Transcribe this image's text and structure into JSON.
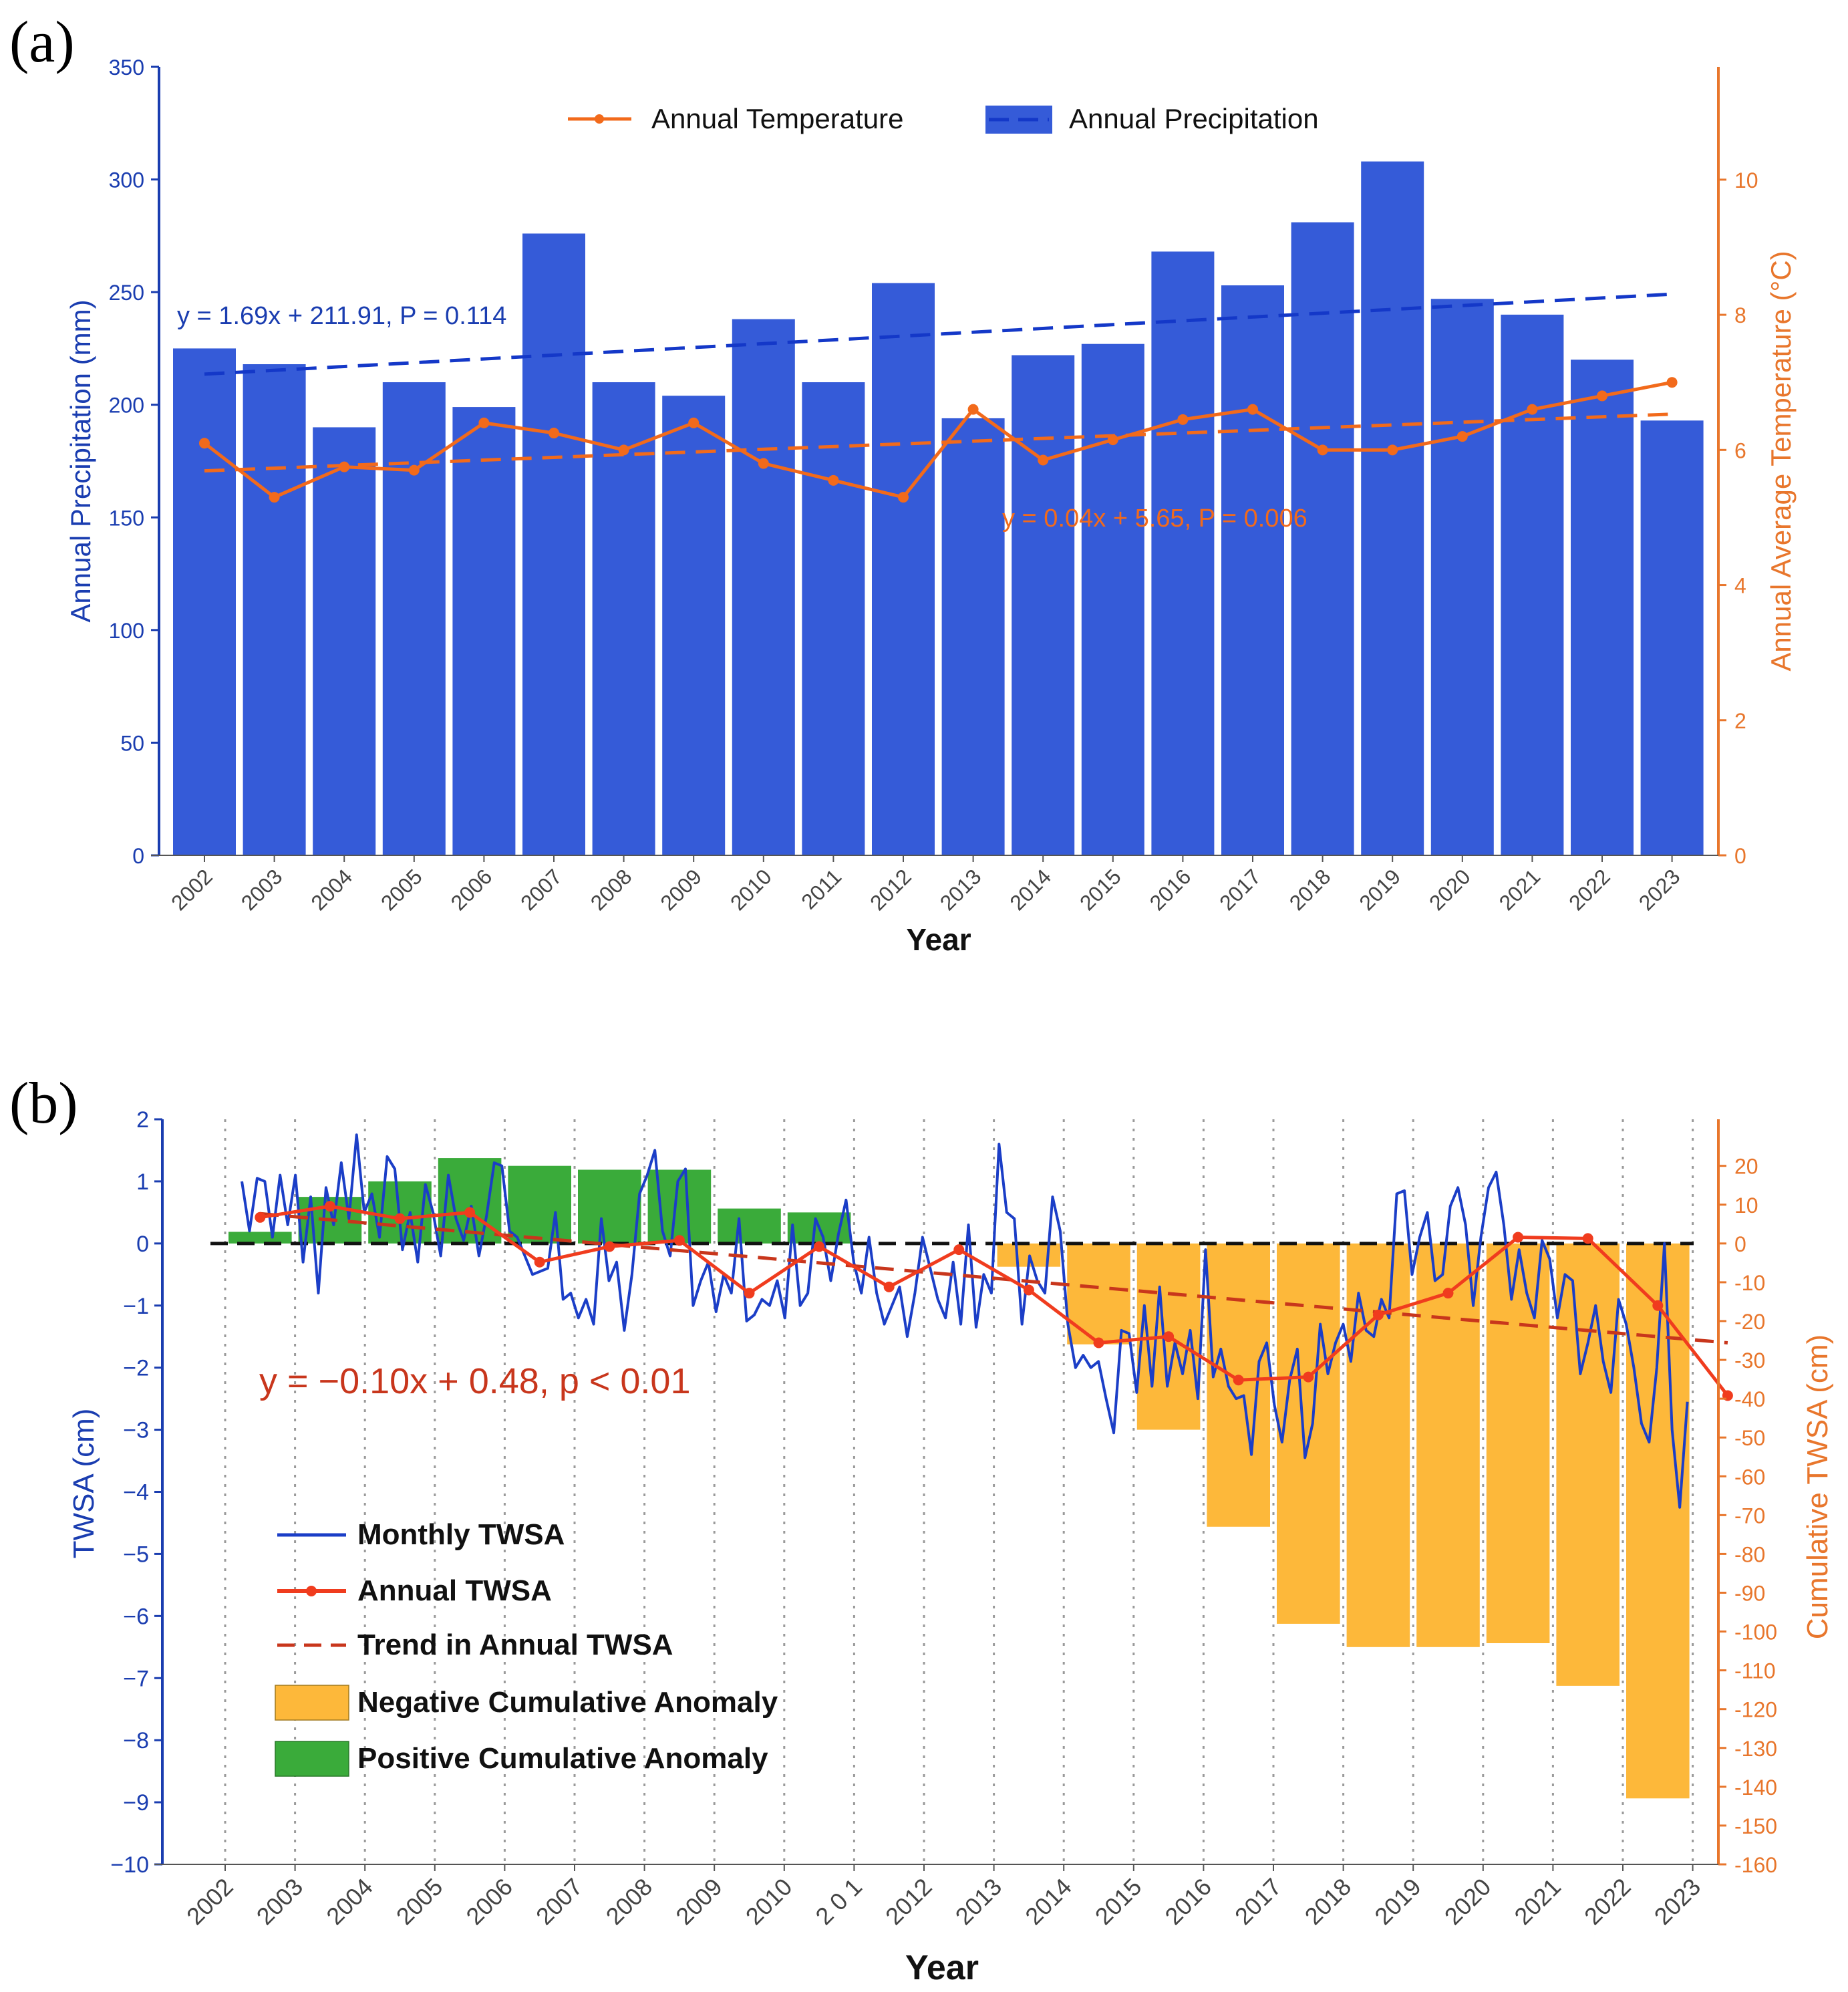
{
  "colors": {
    "precip_bar": "#355bd8",
    "precip_axis": "#1a3db0",
    "precip_trend": "#1438c8",
    "temp_line": "#f26a1b",
    "temp_axis": "#e8762c",
    "twsa_monthly": "#1b3ec7",
    "twsa_annual": "#f03c1e",
    "twsa_trend": "#c8361c",
    "neg_bar": "#fdb83a",
    "pos_bar": "#3aab3a",
    "zero_line": "#111111",
    "grid": "#9a9a9a"
  },
  "chart_data": [
    {
      "panel_label": "(a)",
      "type": "bar",
      "xlabel": "Year",
      "ylabel": "Annual Precipitation (mm)",
      "y2label": "Annual Average Temperature (°C)",
      "ylim": [
        0,
        350
      ],
      "y2lim": [
        0,
        11.67
      ],
      "yticks": [
        0,
        50,
        100,
        150,
        200,
        250,
        300,
        350
      ],
      "y2ticks": [
        0,
        2,
        4,
        6,
        8,
        10
      ],
      "categories": [
        "2002",
        "2003",
        "2004",
        "2005",
        "2006",
        "2007",
        "2008",
        "2009",
        "2010",
        "2011",
        "2012",
        "2013",
        "2014",
        "2015",
        "2016",
        "2017",
        "2018",
        "2019",
        "2020",
        "2021",
        "2022",
        "2023"
      ],
      "legend": [
        "Annual Temperature",
        "Annual Precipitation"
      ],
      "series": [
        {
          "name": "Annual Precipitation",
          "kind": "bar",
          "axis": "left",
          "values": [
            225,
            218,
            190,
            210,
            199,
            276,
            210,
            204,
            238,
            210,
            254,
            194,
            222,
            227,
            268,
            253,
            281,
            308,
            247,
            240,
            220,
            193
          ]
        },
        {
          "name": "Annual Temperature",
          "kind": "line",
          "axis": "right",
          "values": [
            6.1,
            5.3,
            5.75,
            5.7,
            6.4,
            6.25,
            6.0,
            6.4,
            5.8,
            5.55,
            5.3,
            6.6,
            5.85,
            6.15,
            6.45,
            6.6,
            6.0,
            6.0,
            6.2,
            6.6,
            6.8,
            7.0
          ]
        }
      ],
      "trends": [
        {
          "name": "precip_trend",
          "axis": "left",
          "slope": 1.69,
          "intercept": 211.91,
          "label": "y = 1.69x + 211.91, P = 0.114"
        },
        {
          "name": "temp_trend",
          "axis": "right",
          "slope": 0.04,
          "intercept": 5.65,
          "label": "y = 0.04x + 5.65, P = 0.006"
        }
      ]
    },
    {
      "panel_label": "(b)",
      "type": "line",
      "xlabel": "Year",
      "ylabel": "TWSA (cm)",
      "y2label": "Cumulative TWSA (cm)",
      "ylim": [
        -10,
        2
      ],
      "y2lim": [
        -160,
        30
      ],
      "yticks": [
        -10,
        -9,
        -8,
        -7,
        -6,
        -5,
        -4,
        -3,
        -2,
        -1,
        0,
        1,
        2
      ],
      "y2ticks": [
        -160,
        -150,
        -140,
        -130,
        -120,
        -110,
        -100,
        -90,
        -80,
        -70,
        -60,
        -50,
        -40,
        -30,
        -20,
        -10,
        0,
        10,
        20
      ],
      "categories": [
        "2002",
        "2003",
        "2004",
        "2005",
        "2006",
        "2007",
        "2008",
        "2009",
        "2010",
        "2 0 1",
        "2012",
        "2013",
        "2014",
        "2015",
        "2016",
        "2017",
        "2018",
        "2019",
        "2020",
        "2021",
        "2022",
        "2023"
      ],
      "trend_label": "y = −0.10x + 0.48, p < 0.01",
      "trend": {
        "start": 0.48,
        "end": -1.6
      },
      "legend": [
        "Monthly TWSA",
        "Annual TWSA",
        "Trend in Annual TWSA",
        "Negative Cumulative Anomaly",
        "Positive  Cumulative  Anomaly"
      ],
      "cumulative_twsa": [
        3,
        12,
        16,
        22,
        20,
        19,
        19,
        9,
        8,
        0,
        0,
        -6,
        -26,
        -48,
        -73,
        -98,
        -104,
        -104,
        -103,
        -114,
        -143,
        0
      ],
      "annual_twsa": [
        0.42,
        0.6,
        0.4,
        0.5,
        -0.3,
        -0.05,
        0.05,
        -0.8,
        -0.05,
        -0.7,
        -0.1,
        -0.75,
        -1.6,
        -1.5,
        -2.2,
        -2.15,
        -1.15,
        -0.8,
        0.1,
        0.08,
        -1.0,
        -2.45
      ],
      "monthly_twsa": [
        1.0,
        0.2,
        1.05,
        1.0,
        0.1,
        1.1,
        0.3,
        1.1,
        -0.3,
        0.75,
        -0.8,
        0.9,
        0.3,
        1.3,
        0.4,
        1.75,
        0.5,
        0.8,
        0.1,
        1.4,
        1.2,
        -0.1,
        0.5,
        -0.3,
        0.95,
        0.5,
        -0.2,
        1.1,
        0.4,
        0.05,
        0.6,
        -0.2,
        0.45,
        1.3,
        1.25,
        0.2,
        0.1,
        -0.2,
        -0.5,
        -0.45,
        -0.4,
        0.5,
        -0.9,
        -0.8,
        -1.2,
        -0.9,
        -1.3,
        0.4,
        -0.6,
        -0.3,
        -1.4,
        -0.5,
        0.8,
        1.1,
        1.5,
        0.2,
        -0.2,
        1.0,
        1.2,
        -1.0,
        -0.6,
        -0.3,
        -1.1,
        -0.5,
        -0.8,
        0.4,
        -1.25,
        -1.15,
        -0.9,
        -1.0,
        -0.6,
        -1.2,
        0.3,
        -1.0,
        -0.8,
        0.4,
        0.1,
        -0.6,
        0.15,
        0.7,
        -0.3,
        -0.8,
        0.1,
        -0.8,
        -1.3,
        -1.0,
        -0.7,
        -1.5,
        -0.8,
        0.1,
        -0.4,
        -0.9,
        -1.2,
        -0.3,
        -1.3,
        0.3,
        -1.35,
        -0.5,
        -0.8,
        1.6,
        0.5,
        0.4,
        -1.3,
        -0.2,
        -0.6,
        -0.8,
        0.75,
        0.2,
        -1.3,
        -2.0,
        -1.8,
        -2.0,
        -1.9,
        -2.5,
        -3.05,
        -1.4,
        -1.45,
        -2.4,
        -1.0,
        -2.3,
        -0.7,
        -2.3,
        -1.6,
        -2.1,
        -1.4,
        -2.5,
        -0.1,
        -2.15,
        -1.7,
        -2.3,
        -2.5,
        -2.45,
        -3.4,
        -1.9,
        -1.6,
        -2.6,
        -3.2,
        -2.2,
        -1.7,
        -3.45,
        -2.9,
        -1.3,
        -2.1,
        -1.6,
        -1.3,
        -1.9,
        -0.8,
        -1.4,
        -1.5,
        -0.9,
        -1.2,
        0.8,
        0.85,
        -0.5,
        0.1,
        0.5,
        -0.6,
        -0.5,
        0.6,
        0.9,
        0.3,
        -1.0,
        0.1,
        0.9,
        1.15,
        0.3,
        -0.9,
        -0.1,
        -0.8,
        -1.2,
        0.05,
        -0.25,
        -1.2,
        -0.5,
        -0.6,
        -2.1,
        -1.6,
        -1.0,
        -1.9,
        -2.4,
        -0.9,
        -1.3,
        -2.0,
        -2.9,
        -3.2,
        -2.0,
        0.0,
        -3.0,
        -4.25,
        -2.55
      ]
    }
  ]
}
